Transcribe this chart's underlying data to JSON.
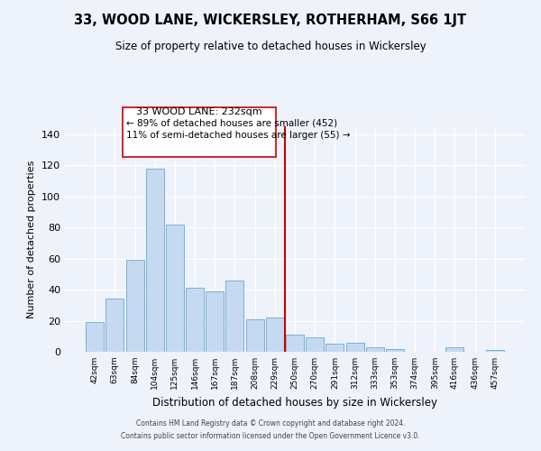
{
  "title": "33, WOOD LANE, WICKERSLEY, ROTHERHAM, S66 1JT",
  "subtitle": "Size of property relative to detached houses in Wickersley",
  "xlabel": "Distribution of detached houses by size in Wickersley",
  "ylabel": "Number of detached properties",
  "bar_labels": [
    "42sqm",
    "63sqm",
    "84sqm",
    "104sqm",
    "125sqm",
    "146sqm",
    "167sqm",
    "187sqm",
    "208sqm",
    "229sqm",
    "250sqm",
    "270sqm",
    "291sqm",
    "312sqm",
    "333sqm",
    "353sqm",
    "374sqm",
    "395sqm",
    "416sqm",
    "436sqm",
    "457sqm"
  ],
  "bar_values": [
    19,
    34,
    59,
    118,
    82,
    41,
    39,
    46,
    21,
    22,
    11,
    9,
    5,
    6,
    3,
    2,
    0,
    0,
    3,
    0,
    1
  ],
  "bar_color": "#c5d9f1",
  "bar_edge_color": "#7ab0d4",
  "vline_x_idx": 9,
  "vline_color": "#cc0000",
  "annotation_line1": "33 WOOD LANE: 232sqm",
  "annotation_line2": "← 89% of detached houses are smaller (452)",
  "annotation_line3": "11% of semi-detached houses are larger (55) →",
  "annotation_box_color": "#ffffff",
  "annotation_box_edge": "#cc0000",
  "ylim": [
    0,
    145
  ],
  "yticks": [
    0,
    20,
    40,
    60,
    80,
    100,
    120,
    140
  ],
  "footer1": "Contains HM Land Registry data © Crown copyright and database right 2024.",
  "footer2": "Contains public sector information licensed under the Open Government Licence v3.0.",
  "bg_color": "#eef2fb",
  "grid_color": "#ffffff"
}
